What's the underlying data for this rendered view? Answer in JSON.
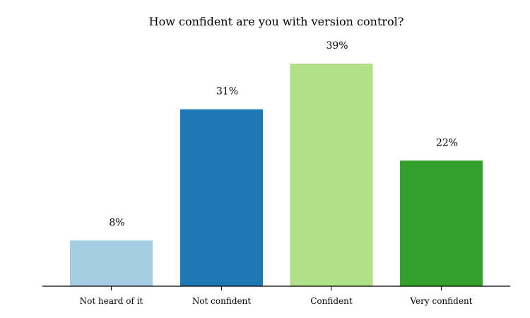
{
  "chart_data": {
    "type": "bar",
    "title": "How confident are you with version control?",
    "categories": [
      "Not heard of it",
      "Not confident",
      "Confident",
      "Very confident"
    ],
    "values": [
      8,
      31,
      39,
      22
    ],
    "value_labels": [
      "8%",
      "31%",
      "39%",
      "22%"
    ],
    "colors": [
      "#a6cee3",
      "#1f78b4",
      "#b2df8a",
      "#33a02c"
    ],
    "xlabel": "",
    "ylabel": "",
    "ylim": [
      0,
      42
    ],
    "grid": false,
    "legend": "none"
  }
}
